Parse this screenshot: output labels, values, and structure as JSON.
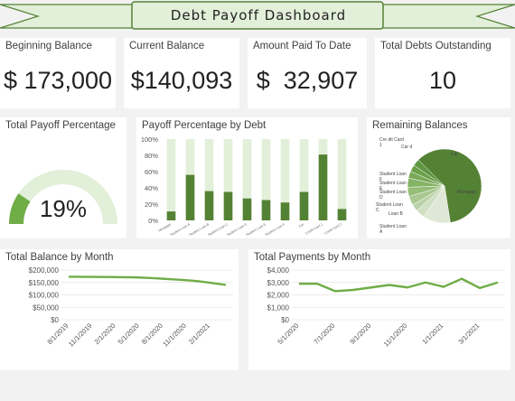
{
  "dashboard": {
    "title": "Debt Payoff Dashboard"
  },
  "colors": {
    "accent": "#70ad47",
    "dark_green": "#548235",
    "light_green": "#e2efd9",
    "banner_fill": "#e2efd9"
  },
  "kpis": [
    {
      "label": "Beginning Balance",
      "value": "$ 173,000"
    },
    {
      "label": "Current Balance",
      "value": "$140,093"
    },
    {
      "label": "Amount Paid To Date",
      "value": "$  32,907"
    },
    {
      "label": "Total Debts Outstanding",
      "value": "10"
    }
  ],
  "gauge": {
    "title": "Total Payoff Percentage",
    "value_text": "19%",
    "fraction": 0.19
  },
  "payoff_by_debt": {
    "title": "Payoff Percentage by Debt",
    "chart_data": {
      "type": "bar",
      "stacked": true,
      "categories": [
        "Mortgage",
        "Student Loan A",
        "Student Loan B",
        "Student Loan C",
        "Student Loan D",
        "Student Loan E",
        "Student Loan F",
        "Car",
        "Credit Card 1",
        "Credit Card 2"
      ],
      "series": [
        {
          "values": [
            11,
            56,
            36,
            35,
            27,
            25,
            22,
            35,
            81,
            14
          ]
        },
        {
          "values": [
            89,
            44,
            64,
            65,
            73,
            75,
            78,
            65,
            19,
            86
          ]
        }
      ],
      "yticks": [
        "0%",
        "20%",
        "40%",
        "60%",
        "80%",
        "100%"
      ],
      "ylim": [
        0,
        100
      ]
    }
  },
  "remaining_balances": {
    "title": "Remaining Balances",
    "chart_data": {
      "type": "pie",
      "labels": [
        "Mortgage",
        "Car",
        "Credit Card 1",
        "Credit Card 2",
        "Student Loan F",
        "Student Loan E",
        "Student Loan D",
        "Student Loan C",
        "Student Loan B",
        "Student Loan A"
      ],
      "display_labels": [
        "Mortgage",
        "Car",
        "Cre dit Card 1",
        "Car d",
        "Student Loan F",
        "Student Loan E",
        "Student Loan D",
        "Student Loan C",
        "Loan B",
        "Student Loan A"
      ],
      "values": [
        60,
        12,
        4,
        3,
        4,
        4,
        4,
        3,
        3,
        3
      ]
    }
  },
  "total_balance": {
    "title": "Total Balance by Month",
    "chart_data": {
      "type": "line",
      "x": [
        "8/1/2019",
        "9/1/2019",
        "10/1/2019",
        "11/1/2019",
        "12/1/2019",
        "1/1/2020",
        "2/1/2020",
        "3/1/2020",
        "4/1/2020",
        "5/1/2020",
        "6/1/2020",
        "7/1/2020",
        "8/1/2020",
        "9/1/2020",
        "10/1/2020",
        "11/1/2020",
        "12/1/2020",
        "1/1/2021",
        "2/1/2021",
        "3/1/2021",
        "4/1/2021"
      ],
      "xticks": [
        "8/1/2019",
        "11/1/2019",
        "2/1/2020",
        "5/1/2020",
        "8/1/2020",
        "11/1/2020",
        "2/1/2021"
      ],
      "y": [
        173000,
        172800,
        172600,
        172400,
        172200,
        172000,
        171700,
        171300,
        170800,
        170000,
        168500,
        167000,
        165000,
        163000,
        161000,
        159000,
        156500,
        153000,
        149000,
        144500,
        140093
      ],
      "yticks": [
        "$0",
        "$50,000",
        "$100,000",
        "$150,000",
        "$200,000"
      ],
      "ylim": [
        0,
        200000
      ]
    }
  },
  "total_payments": {
    "title": "Total Payments by Month",
    "chart_data": {
      "type": "line",
      "x": [
        "5/1/2020",
        "6/1/2020",
        "7/1/2020",
        "8/1/2020",
        "9/1/2020",
        "10/1/2020",
        "11/1/2020",
        "12/1/2020",
        "1/1/2021",
        "2/1/2021",
        "3/1/2021",
        "4/1/2021"
      ],
      "xticks": [
        "5/1/2020",
        "7/1/2020",
        "9/1/2020",
        "11/1/2020",
        "1/1/2021",
        "3/1/2021"
      ],
      "y": [
        2900,
        2900,
        2300,
        2400,
        2600,
        2800,
        2600,
        3000,
        2650,
        3300,
        2550,
        3000
      ],
      "yticks": [
        "$0",
        "$1,000",
        "$2,000",
        "$3,000",
        "$4,000"
      ],
      "ylim": [
        0,
        4000
      ]
    }
  }
}
